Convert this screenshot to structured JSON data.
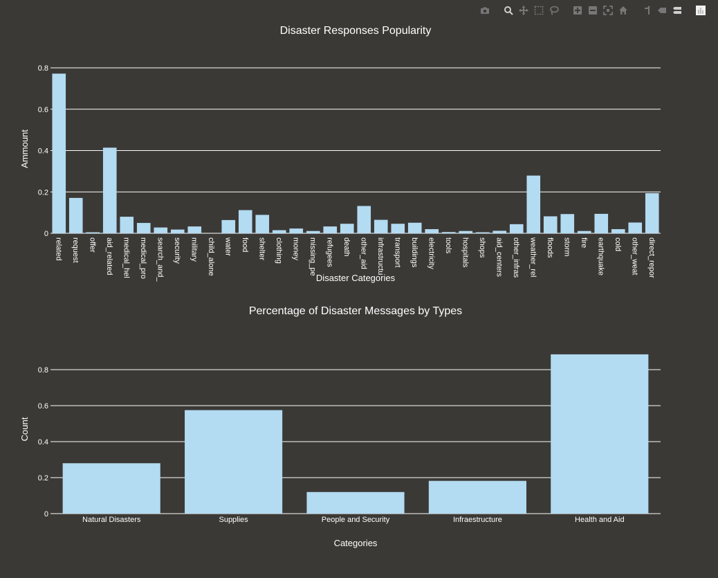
{
  "modebar": {
    "buttons": [
      "camera-icon",
      "zoom-icon",
      "pan-icon",
      "box-select-icon",
      "lasso-select-icon",
      "zoom-in-icon",
      "zoom-out-icon",
      "autoscale-icon",
      "reset-axes-icon",
      "spike-lines-icon",
      "hover-closest-icon",
      "hover-compare-icon",
      "plotly-logo-icon"
    ]
  },
  "colors": {
    "background": "#3b3936",
    "bar": "#b3dbf2",
    "grid": "#ffffff",
    "text": "#ffffff"
  },
  "chart_data": [
    {
      "type": "bar",
      "title": "Disaster Responses Popularity",
      "xlabel": "Disaster Categories",
      "ylabel": "Ammount",
      "ylim": [
        0,
        0.8
      ],
      "yticks": [
        0,
        0.2,
        0.4,
        0.6,
        0.8
      ],
      "ytick_labels": [
        "0",
        "0.2",
        "0.4",
        "0.6",
        "0.8"
      ],
      "grid": true,
      "categories": [
        "related",
        "request",
        "offer",
        "aid_related",
        "medical_hel",
        "medical_pro",
        "search_and_",
        "security",
        "military",
        "child_alone",
        "water",
        "food",
        "shelter",
        "clothing",
        "money",
        "missing_pe",
        "refugees",
        "death",
        "other_aid",
        "infrastructu",
        "transport",
        "buildings",
        "electricity",
        "tools",
        "hospitals",
        "shops",
        "aid_centers",
        "other_infras",
        "weather_rel",
        "floods",
        "storm",
        "fire",
        "earthquake",
        "cold",
        "other_weat",
        "direct_repor"
      ],
      "values": [
        0.772,
        0.171,
        0.005,
        0.414,
        0.08,
        0.05,
        0.028,
        0.018,
        0.033,
        0,
        0.064,
        0.112,
        0.089,
        0.015,
        0.023,
        0.011,
        0.033,
        0.046,
        0.132,
        0.065,
        0.046,
        0.051,
        0.02,
        0.006,
        0.011,
        0.005,
        0.012,
        0.044,
        0.279,
        0.082,
        0.093,
        0.011,
        0.094,
        0.02,
        0.052,
        0.194
      ]
    },
    {
      "type": "bar",
      "title": "Percentage of Disaster Messages by Types",
      "xlabel": "Categories",
      "ylabel": "Count",
      "ylim": [
        0,
        0.9
      ],
      "yticks": [
        0,
        0.2,
        0.4,
        0.6,
        0.8
      ],
      "ytick_labels": [
        "0",
        "0.2",
        "0.4",
        "0.6",
        "0.8"
      ],
      "grid": true,
      "categories": [
        "Natural Disasters",
        "Supplies",
        "People and Security",
        "Infraestructure",
        "Health and Aid"
      ],
      "values": [
        0.28,
        0.575,
        0.12,
        0.182,
        0.885
      ]
    }
  ]
}
